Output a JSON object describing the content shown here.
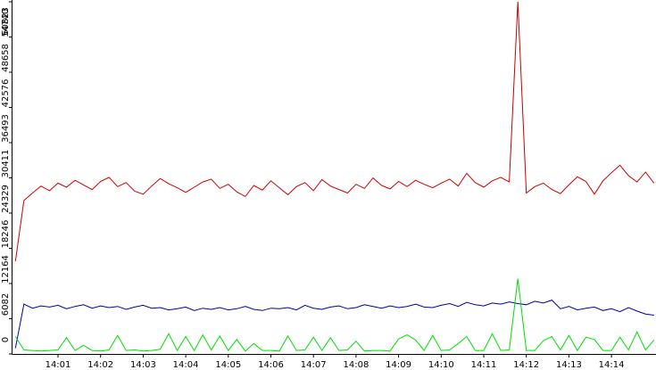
{
  "chart_data": {
    "type": "line",
    "categories": [
      null,
      null,
      null,
      null,
      null,
      "14:01",
      null,
      null,
      null,
      null,
      "14:02",
      null,
      null,
      null,
      null,
      "14:03",
      null,
      null,
      null,
      null,
      "14:04",
      null,
      null,
      null,
      null,
      "14:05",
      null,
      null,
      null,
      null,
      "14:06",
      null,
      null,
      null,
      null,
      "14:07",
      null,
      null,
      null,
      null,
      "14:08",
      null,
      null,
      null,
      null,
      "14:09",
      null,
      null,
      null,
      null,
      "14:10",
      null,
      null,
      null,
      null,
      "14:11",
      null,
      null,
      null,
      null,
      "14:12",
      null,
      null,
      null,
      null,
      "14:13",
      null,
      null,
      null,
      null,
      "14:14",
      null,
      null,
      null,
      null,
      null
    ],
    "series": [
      {
        "color": "#cc0000",
        "values": [
          16000,
          26500,
          27800,
          29000,
          28200,
          29500,
          28800,
          30000,
          29200,
          28400,
          29800,
          30500,
          28900,
          29600,
          28100,
          27600,
          29000,
          30300,
          29400,
          28700,
          27900,
          28800,
          29700,
          30200,
          28600,
          29300,
          28000,
          27200,
          29100,
          28300,
          29900,
          28700,
          27500,
          28900,
          29600,
          28200,
          30100,
          29000,
          28400,
          27800,
          29300,
          28600,
          30400,
          29100,
          28500,
          29800,
          28900,
          30000,
          29300,
          28700,
          29500,
          30200,
          29000,
          31200,
          29600,
          28800,
          29900,
          30500,
          29700,
          60823,
          27800,
          28900,
          29500,
          28400,
          27700,
          29200,
          30600,
          29800,
          27600,
          29900,
          31300,
          32600,
          30800,
          29700,
          31400,
          29500
        ]
      },
      {
        "color": "#0000aa",
        "values": [
          1000,
          8600,
          7900,
          8300,
          8100,
          8400,
          7800,
          8200,
          8500,
          7900,
          8300,
          8000,
          8200,
          7700,
          8100,
          8400,
          7900,
          8000,
          7600,
          7800,
          8100,
          7500,
          7900,
          7700,
          8000,
          7600,
          7800,
          8200,
          7700,
          7500,
          7900,
          7800,
          8000,
          7600,
          8400,
          7900,
          7700,
          8100,
          8300,
          7800,
          8000,
          8500,
          8200,
          7900,
          8300,
          8000,
          8200,
          8600,
          8100,
          8000,
          8400,
          8700,
          8200,
          8900,
          8500,
          8300,
          8800,
          8600,
          9000,
          8700,
          8500,
          9100,
          8800,
          9300,
          7800,
          8200,
          7600,
          7900,
          8100,
          7500,
          7800,
          7300,
          8000,
          7400,
          6900,
          6700
        ]
      },
      {
        "color": "#00dd00",
        "values": [
          3000,
          700,
          600,
          500,
          600,
          700,
          2800,
          600,
          1500,
          600,
          500,
          700,
          3200,
          600,
          700,
          500,
          600,
          800,
          3500,
          600,
          3000,
          600,
          3300,
          700,
          3100,
          600,
          2500,
          500,
          1800,
          600,
          600,
          500,
          3100,
          600,
          700,
          2900,
          600,
          2800,
          600,
          700,
          2200,
          500,
          600,
          600,
          500,
          2600,
          3300,
          2400,
          600,
          3200,
          600,
          700,
          1800,
          3000,
          600,
          600,
          3500,
          600,
          700,
          13000,
          600,
          600,
          2300,
          3000,
          700,
          3200,
          600,
          2900,
          2500,
          600,
          600,
          2900,
          700,
          3800,
          700,
          2400
        ]
      }
    ],
    "ylim": [
      0,
      60823
    ],
    "yticks": [
      0,
      6082,
      12164,
      18246,
      24329,
      30411,
      36493,
      42576,
      48658,
      54740,
      60823
    ]
  }
}
